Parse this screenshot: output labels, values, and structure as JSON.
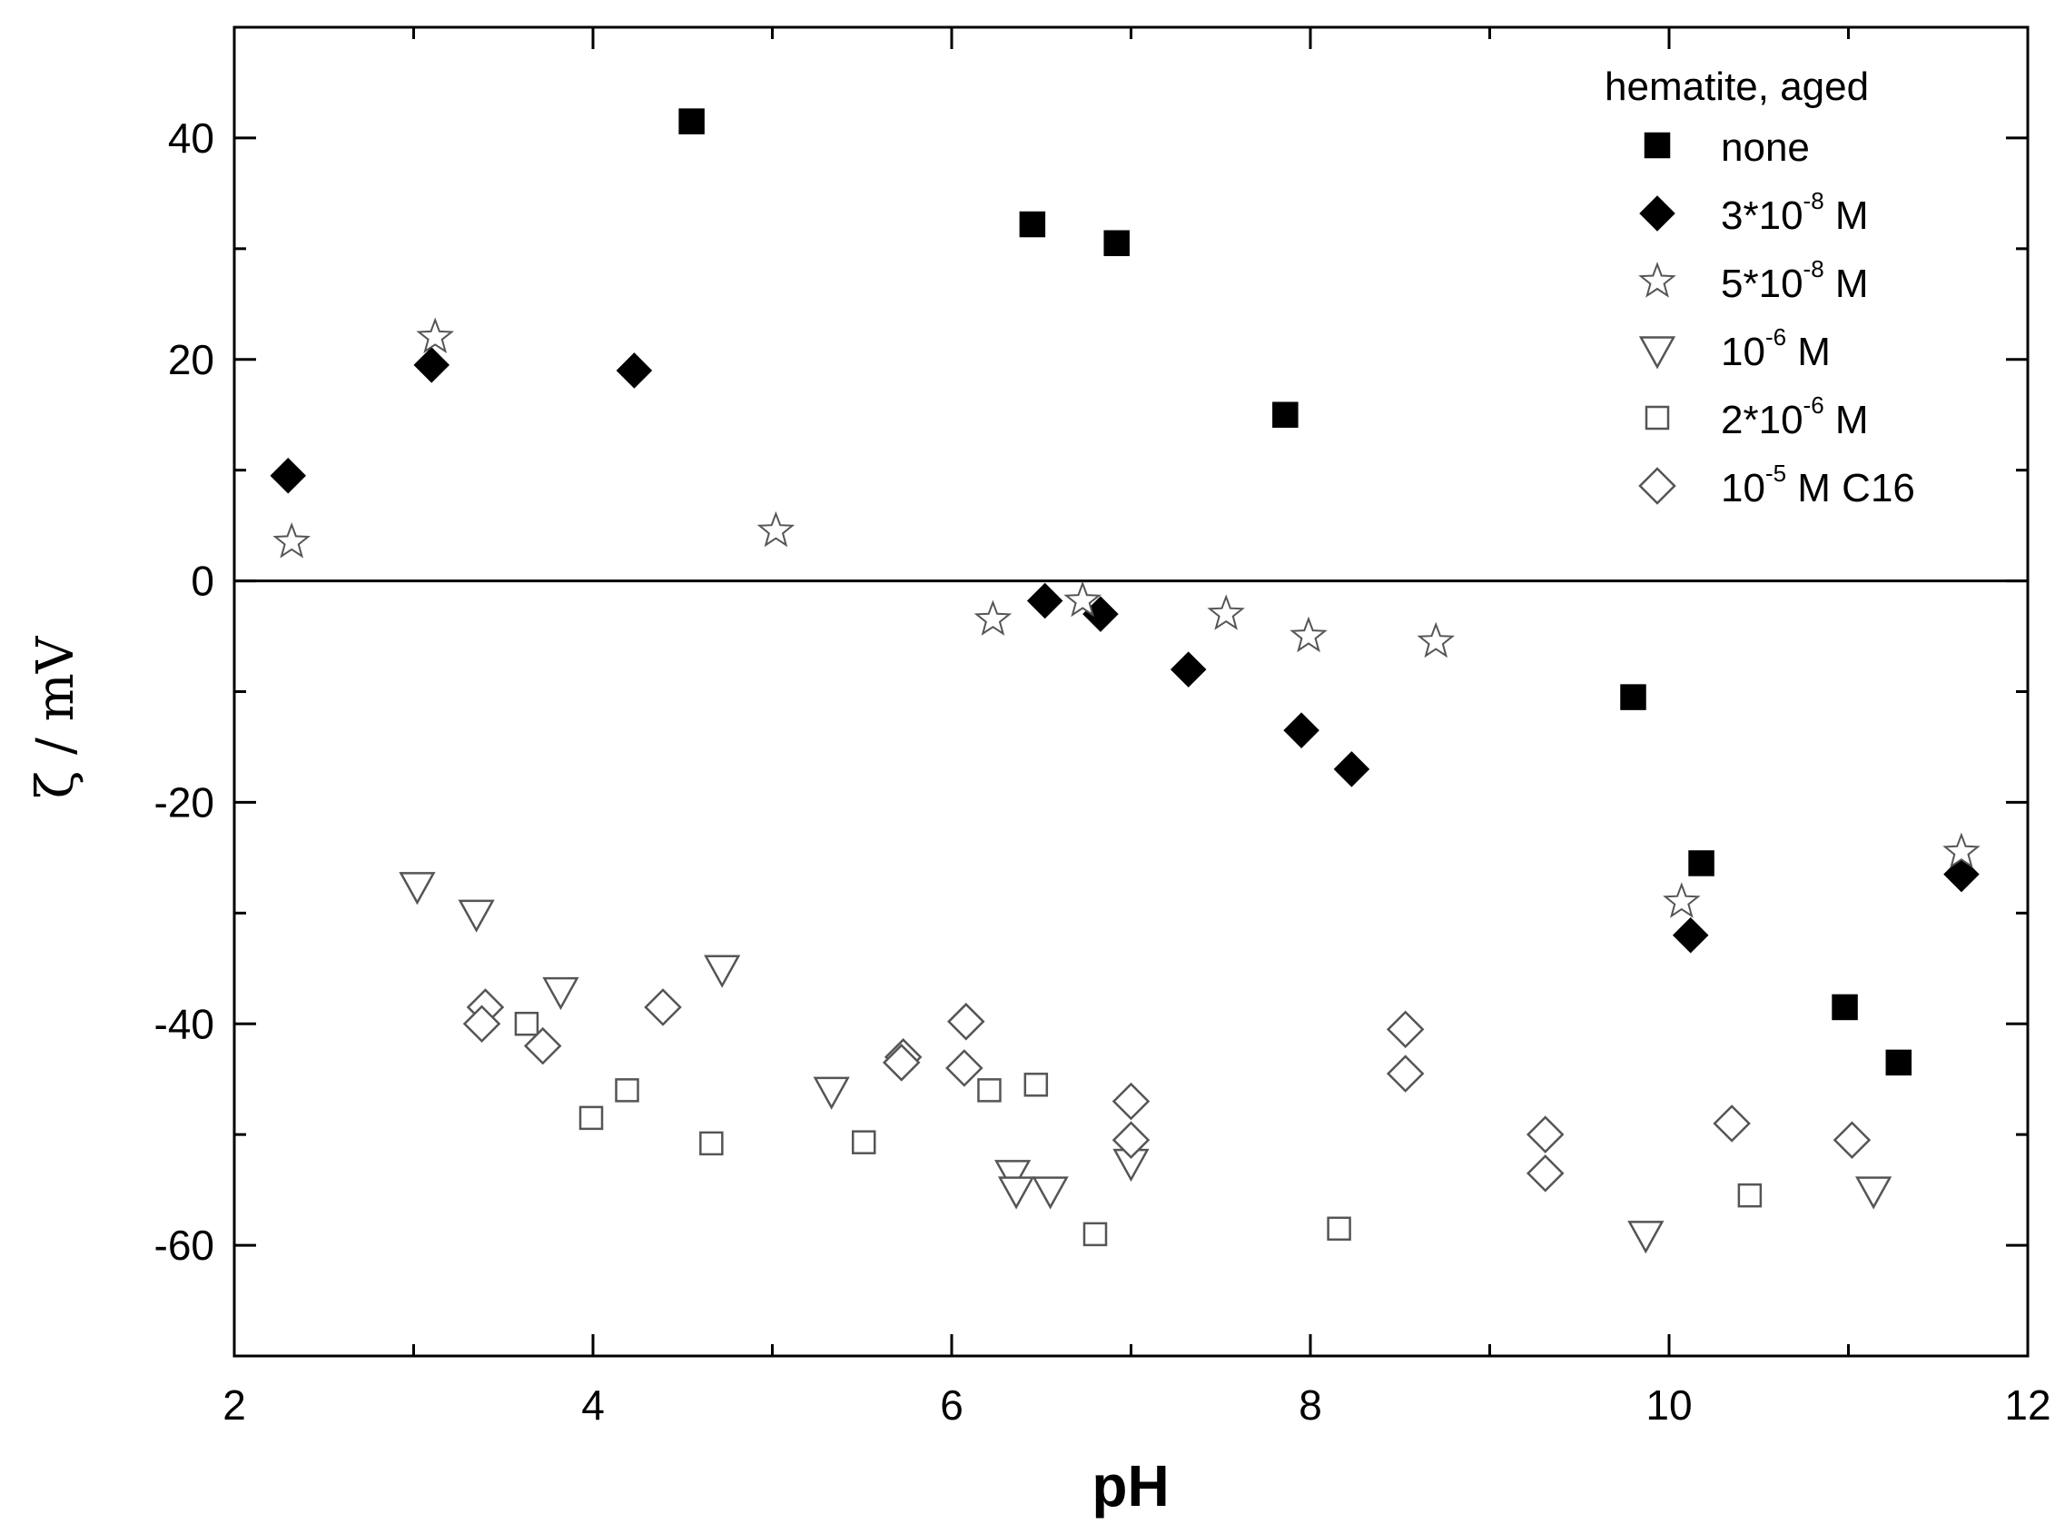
{
  "chart_data": {
    "type": "scatter",
    "title": "",
    "xlabel": "pH",
    "ylabel": "ζ / mV",
    "xlim": [
      2,
      12
    ],
    "ylim": [
      -70,
      50
    ],
    "xticks": [
      2,
      4,
      6,
      8,
      10,
      12
    ],
    "yticks": [
      -60,
      -40,
      -20,
      0,
      20,
      40
    ],
    "xtick_labels": [
      "2",
      "4",
      "6",
      "8",
      "10",
      "12"
    ],
    "ytick_labels": [
      "-60",
      "-40",
      "-20",
      "0",
      "20",
      "40"
    ],
    "zero_line": true,
    "grid": false,
    "legend": {
      "title": "hematite, aged",
      "position": "top-right"
    },
    "series": [
      {
        "name": "none",
        "label_main": "none",
        "label_sup": "",
        "label_after": "",
        "marker": "square",
        "filled": true,
        "points": [
          [
            4.55,
            41.5
          ],
          [
            6.45,
            32.2
          ],
          [
            6.92,
            30.5
          ],
          [
            7.86,
            15.0
          ],
          [
            9.8,
            -10.5
          ],
          [
            10.18,
            -25.5
          ],
          [
            10.98,
            -38.5
          ],
          [
            11.28,
            -43.5
          ]
        ]
      },
      {
        "name": "3*10^-8 M",
        "label_main": "3*10",
        "label_sup": "-8",
        "label_after": " M",
        "marker": "diamond",
        "filled": true,
        "points": [
          [
            2.3,
            9.5
          ],
          [
            3.1,
            19.5
          ],
          [
            4.23,
            19.0
          ],
          [
            6.52,
            -1.8
          ],
          [
            6.83,
            -3.0
          ],
          [
            7.32,
            -8.0
          ],
          [
            7.95,
            -13.5
          ],
          [
            8.23,
            -17.0
          ],
          [
            10.12,
            -32.0
          ],
          [
            11.63,
            -26.5
          ]
        ]
      },
      {
        "name": "5*10^-8 M",
        "label_main": "5*10",
        "label_sup": "-8",
        "label_after": " M",
        "marker": "star",
        "filled": false,
        "points": [
          [
            2.32,
            3.5
          ],
          [
            3.12,
            22.0
          ],
          [
            5.02,
            4.5
          ],
          [
            6.23,
            -3.5
          ],
          [
            6.73,
            -1.8
          ],
          [
            7.53,
            -3.0
          ],
          [
            7.99,
            -5.0
          ],
          [
            8.7,
            -5.5
          ],
          [
            10.07,
            -29.0
          ],
          [
            11.63,
            -24.5
          ]
        ]
      },
      {
        "name": "10^-6 M",
        "label_main": "10",
        "label_sup": "-6",
        "label_after": " M",
        "marker": "triangle-down",
        "filled": false,
        "points": [
          [
            3.02,
            -27.5
          ],
          [
            3.35,
            -30.0
          ],
          [
            3.82,
            -37.0
          ],
          [
            4.72,
            -35.0
          ],
          [
            5.33,
            -46.0
          ],
          [
            6.34,
            -53.5
          ],
          [
            6.36,
            -55.0
          ],
          [
            6.55,
            -55.0
          ],
          [
            7.0,
            -52.5
          ],
          [
            9.87,
            -59.0
          ],
          [
            11.14,
            -55.0
          ]
        ]
      },
      {
        "name": "2*10^-6 M",
        "label_main": "2*10",
        "label_sup": "-6",
        "label_after": " M",
        "marker": "square",
        "filled": false,
        "points": [
          [
            3.63,
            -40.0
          ],
          [
            3.99,
            -48.5
          ],
          [
            4.19,
            -46.0
          ],
          [
            4.66,
            -50.8
          ],
          [
            5.51,
            -50.7
          ],
          [
            6.21,
            -46.0
          ],
          [
            6.47,
            -45.5
          ],
          [
            6.8,
            -59.0
          ],
          [
            8.16,
            -58.5
          ],
          [
            10.45,
            -55.5
          ]
        ]
      },
      {
        "name": "10^-5 M C16",
        "label_main": "10",
        "label_sup": "-5",
        "label_after": " M C16",
        "marker": "diamond",
        "filled": false,
        "points": [
          [
            3.4,
            -38.5
          ],
          [
            3.38,
            -40.0
          ],
          [
            3.72,
            -42.0
          ],
          [
            4.39,
            -38.5
          ],
          [
            5.73,
            -43.0
          ],
          [
            5.72,
            -43.5
          ],
          [
            6.08,
            -39.8
          ],
          [
            6.07,
            -44.0
          ],
          [
            7.0,
            -47.0
          ],
          [
            7.0,
            -50.5
          ],
          [
            8.53,
            -40.5
          ],
          [
            8.53,
            -44.5
          ],
          [
            9.31,
            -50.0
          ],
          [
            9.31,
            -53.5
          ],
          [
            10.35,
            -49.0
          ],
          [
            11.02,
            -50.5
          ]
        ]
      }
    ]
  }
}
